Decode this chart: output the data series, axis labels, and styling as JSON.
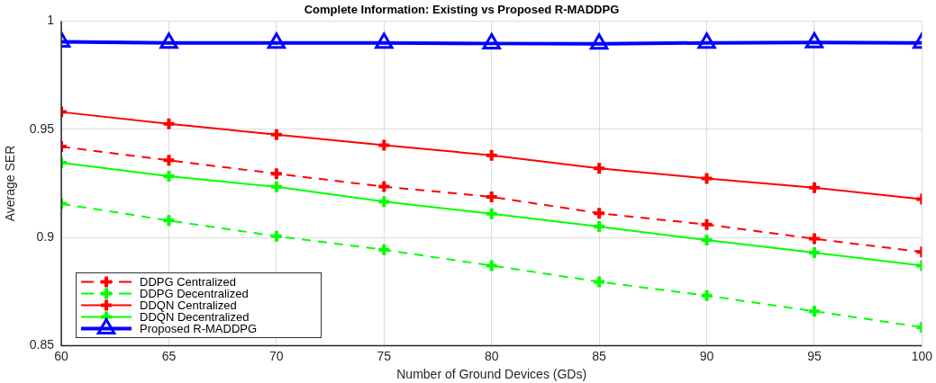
{
  "chart_data": {
    "type": "line",
    "title": "Complete Information: Existing vs Proposed R-MADDPG",
    "xlabel": "Number of Ground Devices (GDs)",
    "ylabel": "Average SER",
    "x": [
      60,
      65,
      70,
      75,
      80,
      85,
      90,
      95,
      100
    ],
    "xlim": [
      60,
      100
    ],
    "xticks": [
      60,
      65,
      70,
      75,
      80,
      85,
      90,
      95,
      100
    ],
    "ylim": [
      0.85,
      1
    ],
    "yticks": [
      0.85,
      0.9,
      0.95,
      1
    ],
    "grid": true,
    "legend": "bottom left",
    "series": [
      {
        "name": "DDPG Centralized",
        "color": "#ff0000",
        "line_style": "dashed",
        "marker": "cross",
        "values": [
          0.942,
          0.9357,
          0.9295,
          0.9235,
          0.9188,
          0.9112,
          0.906,
          0.8994,
          0.8933
        ]
      },
      {
        "name": "DDPG Decentralized",
        "color": "#00ff00",
        "line_style": "dashed",
        "marker": "cross",
        "values": [
          0.9156,
          0.9078,
          0.9006,
          0.8943,
          0.887,
          0.8795,
          0.8731,
          0.8659,
          0.8585
        ]
      },
      {
        "name": "DDQN Centralized",
        "color": "#ff0000",
        "line_style": "solid",
        "marker": "cross",
        "values": [
          0.958,
          0.9525,
          0.9476,
          0.9427,
          0.938,
          0.932,
          0.9273,
          0.923,
          0.9177
        ]
      },
      {
        "name": "DDQN Decentralized",
        "color": "#00ff00",
        "line_style": "solid",
        "marker": "cross",
        "values": [
          0.9346,
          0.9283,
          0.9234,
          0.9166,
          0.911,
          0.905,
          0.8988,
          0.893,
          0.887
        ]
      },
      {
        "name": "Proposed R-MADDPG",
        "color": "#0000ff",
        "line_style": "solid",
        "marker": "triangle",
        "values": [
          0.9905,
          0.99,
          0.99,
          0.99,
          0.9897,
          0.9895,
          0.99,
          0.9902,
          0.99
        ]
      }
    ]
  }
}
